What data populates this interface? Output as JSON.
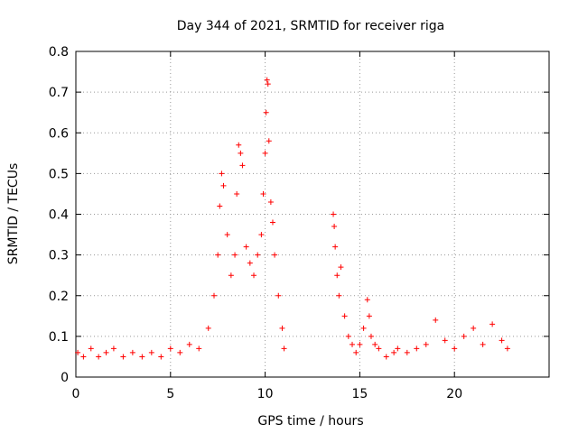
{
  "chart_data": {
    "type": "scatter",
    "title": "Day 344 of 2021, SRMTID for receiver riga",
    "xlabel": "GPS time / hours",
    "ylabel": "SRMTID / TECUs",
    "xlim": [
      0,
      25
    ],
    "ylim": [
      0,
      0.8
    ],
    "xticks": [
      0,
      5,
      10,
      15,
      20
    ],
    "yticks": [
      0,
      0.1,
      0.2,
      0.3,
      0.4,
      0.5,
      0.6,
      0.7,
      0.8
    ],
    "grid": true,
    "marker": "plus",
    "color": "#ff0000",
    "series": [
      {
        "name": "SRMTID",
        "x": [
          0.1,
          0.4,
          0.8,
          1.2,
          1.6,
          2.0,
          2.5,
          3.0,
          3.5,
          4.0,
          4.5,
          5.0,
          5.5,
          6.0,
          6.5,
          7.0,
          7.3,
          7.5,
          7.6,
          7.7,
          7.8,
          8.0,
          8.2,
          8.4,
          8.5,
          8.6,
          8.7,
          8.8,
          9.0,
          9.2,
          9.4,
          9.6,
          9.8,
          9.9,
          10.0,
          10.05,
          10.1,
          10.15,
          10.2,
          10.3,
          10.4,
          10.5,
          10.7,
          10.9,
          11.0,
          13.6,
          13.65,
          13.7,
          13.8,
          13.9,
          14.0,
          14.2,
          14.4,
          14.6,
          14.8,
          15.0,
          15.2,
          15.4,
          15.5,
          15.6,
          15.8,
          16.0,
          16.4,
          16.8,
          17.0,
          17.5,
          18.0,
          18.5,
          19.0,
          19.5,
          20.0,
          20.5,
          21.0,
          21.5,
          22.0,
          22.5,
          22.8
        ],
        "y": [
          0.06,
          0.05,
          0.07,
          0.05,
          0.06,
          0.07,
          0.05,
          0.06,
          0.05,
          0.06,
          0.05,
          0.07,
          0.06,
          0.08,
          0.07,
          0.12,
          0.2,
          0.3,
          0.42,
          0.5,
          0.47,
          0.35,
          0.25,
          0.3,
          0.45,
          0.57,
          0.55,
          0.52,
          0.32,
          0.28,
          0.25,
          0.3,
          0.35,
          0.45,
          0.55,
          0.65,
          0.73,
          0.72,
          0.58,
          0.43,
          0.38,
          0.3,
          0.2,
          0.12,
          0.07,
          0.4,
          0.37,
          0.32,
          0.25,
          0.2,
          0.27,
          0.15,
          0.1,
          0.08,
          0.06,
          0.08,
          0.12,
          0.19,
          0.15,
          0.1,
          0.08,
          0.07,
          0.05,
          0.06,
          0.07,
          0.06,
          0.07,
          0.08,
          0.14,
          0.09,
          0.07,
          0.1,
          0.12,
          0.08,
          0.13,
          0.09,
          0.07
        ]
      }
    ]
  }
}
